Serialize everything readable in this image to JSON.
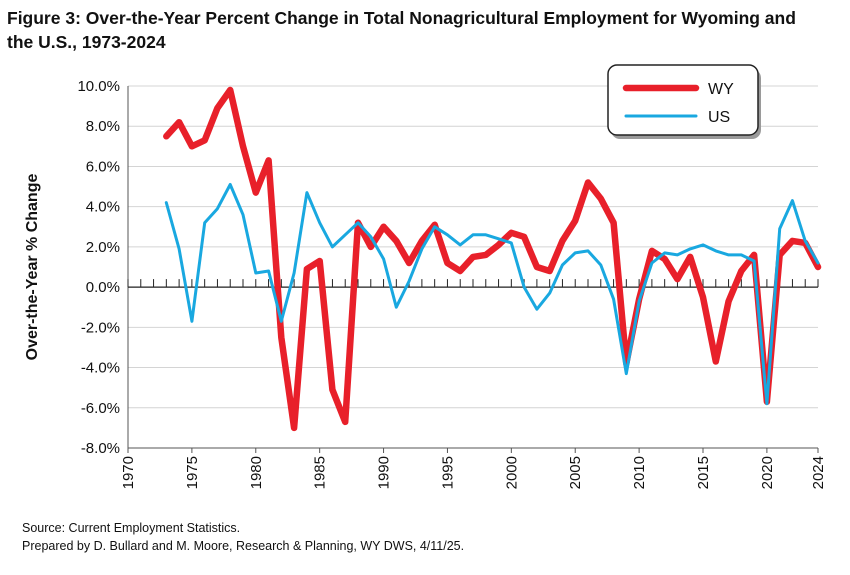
{
  "title_line1": "Figure 3: Over-the-Year Percent Change in Total Nonagricultural Employment for Wyoming and",
  "title_line2": "the U.S., 1973-2024",
  "source_line1": "Source: Current Employment Statistics.",
  "source_line2": "Prepared by D. Bullard and M. Moore, Research & Planning, WY DWS, 4/11/25.",
  "chart_data": {
    "type": "line",
    "ylabel": "Over-the-Year % Change",
    "xlim": [
      1970,
      2024
    ],
    "ylim": [
      -8,
      10
    ],
    "x_ticks": [
      1970,
      1975,
      1980,
      1985,
      1990,
      1995,
      2000,
      2005,
      2010,
      2015,
      2020,
      2024
    ],
    "y_ticks": [
      -8,
      -6,
      -4,
      -2,
      0,
      2,
      4,
      6,
      8,
      10
    ],
    "y_tick_labels": [
      "-8.0%",
      "-6.0%",
      "-4.0%",
      "-2.0%",
      "0.0%",
      "2.0%",
      "4.0%",
      "6.0%",
      "8.0%",
      "10.0%"
    ],
    "grid": "horizontal",
    "legend_position": "top-right",
    "x": [
      1973,
      1974,
      1975,
      1976,
      1977,
      1978,
      1979,
      1980,
      1981,
      1982,
      1983,
      1984,
      1985,
      1986,
      1987,
      1988,
      1989,
      1990,
      1991,
      1992,
      1993,
      1994,
      1995,
      1996,
      1997,
      1998,
      1999,
      2000,
      2001,
      2002,
      2003,
      2004,
      2005,
      2006,
      2007,
      2008,
      2009,
      2010,
      2011,
      2012,
      2013,
      2014,
      2015,
      2016,
      2017,
      2018,
      2019,
      2020,
      2021,
      2022,
      2023,
      2024
    ],
    "series": [
      {
        "name": "WY",
        "color": "#e8202a",
        "values": [
          7.5,
          8.2,
          7.0,
          7.3,
          8.9,
          9.8,
          7.0,
          4.7,
          6.3,
          -2.5,
          -7.0,
          0.9,
          1.3,
          -5.1,
          -6.7,
          3.2,
          2.0,
          3.0,
          2.3,
          1.2,
          2.3,
          3.1,
          1.2,
          0.8,
          1.5,
          1.6,
          2.1,
          2.7,
          2.5,
          1.0,
          0.8,
          2.3,
          3.3,
          5.2,
          4.4,
          3.2,
          -3.8,
          -0.6,
          1.8,
          1.4,
          0.4,
          1.5,
          -0.5,
          -3.7,
          -0.7,
          0.8,
          1.6,
          -5.7,
          1.6,
          2.3,
          2.2,
          1.0
        ]
      },
      {
        "name": "US",
        "color": "#19a8e0",
        "values": [
          4.2,
          1.9,
          -1.7,
          3.2,
          3.9,
          5.1,
          3.6,
          0.7,
          0.8,
          -1.7,
          0.7,
          4.7,
          3.2,
          2.0,
          2.6,
          3.2,
          2.5,
          1.4,
          -1.0,
          0.3,
          1.9,
          3.0,
          2.6,
          2.1,
          2.6,
          2.6,
          2.4,
          2.2,
          0.0,
          -1.1,
          -0.3,
          1.1,
          1.7,
          1.8,
          1.1,
          -0.6,
          -4.3,
          -0.7,
          1.2,
          1.7,
          1.6,
          1.9,
          2.1,
          1.8,
          1.6,
          1.6,
          1.3,
          -5.8,
          2.9,
          4.3,
          2.3,
          1.2
        ]
      }
    ]
  }
}
